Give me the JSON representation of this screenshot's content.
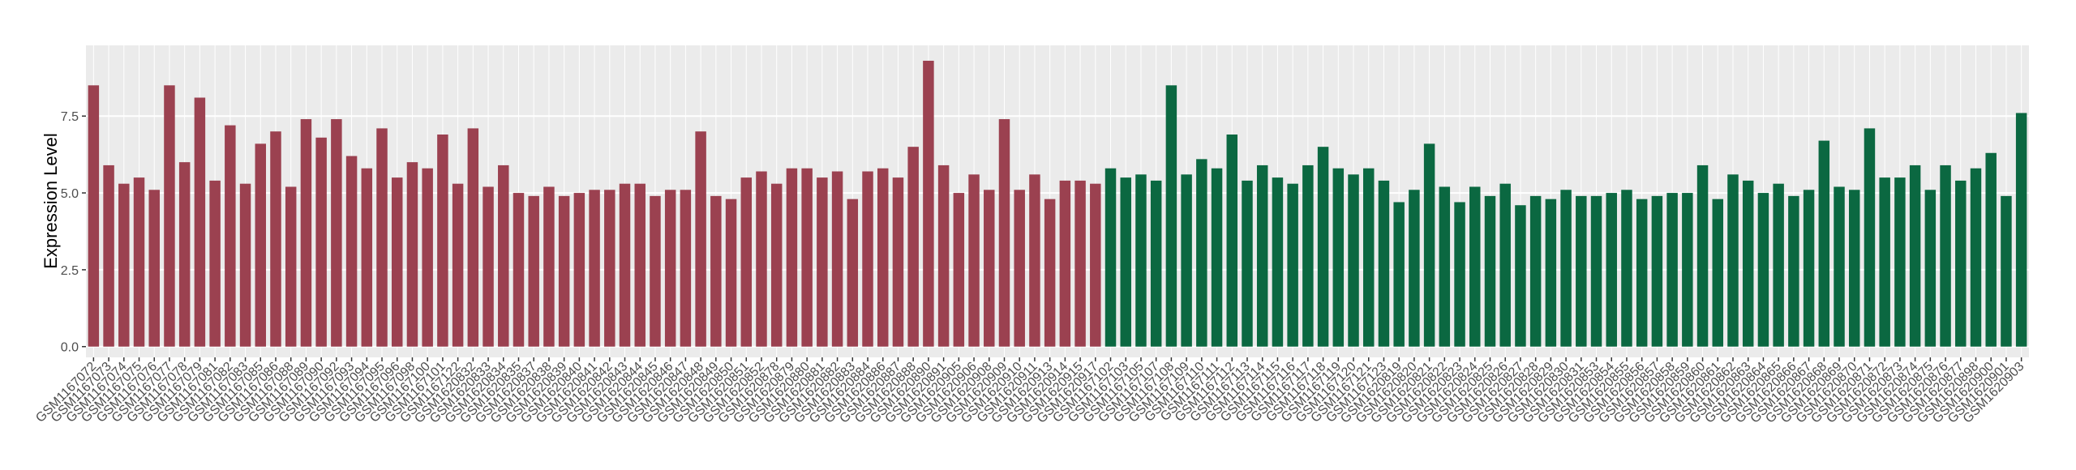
{
  "chart_data": {
    "type": "bar",
    "y_label": "Expression Level",
    "ylim": [
      -0.35,
      9.8
    ],
    "yticks": [
      {
        "value": 0,
        "label": "0.0"
      },
      {
        "value": 2.5,
        "label": "2.5"
      },
      {
        "value": 5,
        "label": "5.0"
      },
      {
        "value": 7.5,
        "label": "7.5"
      }
    ],
    "grid": true,
    "categories": [
      "GSM1167072",
      "GSM1167073",
      "GSM1167074",
      "GSM1167075",
      "GSM1167076",
      "GSM1167077",
      "GSM1167078",
      "GSM1167079",
      "GSM1167081",
      "GSM1167082",
      "GSM1167083",
      "GSM1167085",
      "GSM1167086",
      "GSM1167088",
      "GSM1167089",
      "GSM1167090",
      "GSM1167092",
      "GSM1167093",
      "GSM1167094",
      "GSM1167095",
      "GSM1167096",
      "GSM1167098",
      "GSM1167100",
      "GSM1167101",
      "GSM1167122",
      "GSM1620832",
      "GSM1620833",
      "GSM1620834",
      "GSM1620835",
      "GSM1620837",
      "GSM1620838",
      "GSM1620839",
      "GSM1620840",
      "GSM1620841",
      "GSM1620842",
      "GSM1620843",
      "GSM1620844",
      "GSM1620845",
      "GSM1620846",
      "GSM1620847",
      "GSM1620848",
      "GSM1620849",
      "GSM1620850",
      "GSM1620851",
      "GSM1620852",
      "GSM1620878",
      "GSM1620879",
      "GSM1620880",
      "GSM1620881",
      "GSM1620882",
      "GSM1620883",
      "GSM1620884",
      "GSM1620886",
      "GSM1620887",
      "GSM1620888",
      "GSM1620890",
      "GSM1620891",
      "GSM1620905",
      "GSM1620906",
      "GSM1620908",
      "GSM1620909",
      "GSM1620910",
      "GSM1620911",
      "GSM1620913",
      "GSM1620914",
      "GSM1620915",
      "GSM1620917",
      "GSM1167102",
      "GSM1167103",
      "GSM1167105",
      "GSM1167107",
      "GSM1167108",
      "GSM1167109",
      "GSM1167110",
      "GSM1167111",
      "GSM1167112",
      "GSM1167113",
      "GSM1167114",
      "GSM1167115",
      "GSM1167116",
      "GSM1167117",
      "GSM1167118",
      "GSM1167119",
      "GSM1167120",
      "GSM1167121",
      "GSM1167123",
      "GSM1620819",
      "GSM1620820",
      "GSM1620821",
      "GSM1620822",
      "GSM1620823",
      "GSM1620824",
      "GSM1620825",
      "GSM1620826",
      "GSM1620827",
      "GSM1620828",
      "GSM1620829",
      "GSM1620830",
      "GSM1620831",
      "GSM1620853",
      "GSM1620854",
      "GSM1620855",
      "GSM1620856",
      "GSM1620857",
      "GSM1620858",
      "GSM1620859",
      "GSM1620860",
      "GSM1620861",
      "GSM1620862",
      "GSM1620863",
      "GSM1620864",
      "GSM1620865",
      "GSM1620866",
      "GSM1620867",
      "GSM1620868",
      "GSM1620869",
      "GSM1620870",
      "GSM1620871",
      "GSM1620872",
      "GSM1620873",
      "GSM1620874",
      "GSM1620875",
      "GSM1620876",
      "GSM1620877",
      "GSM1620898",
      "GSM1620900",
      "GSM1620901",
      "GSM1620903"
    ],
    "series": [
      {
        "color": "#9b4150",
        "values": [
          8.5,
          5.9,
          5.3,
          5.5,
          5.1,
          8.5,
          6.0,
          8.1,
          5.4,
          7.2,
          5.3,
          6.6,
          7.0,
          5.2,
          7.4,
          6.8,
          7.4,
          6.2,
          5.8,
          7.1,
          5.5,
          6.0,
          5.8,
          6.9,
          5.3,
          7.1,
          5.2,
          5.9,
          5.0,
          4.9,
          5.2,
          4.9,
          5.0,
          5.1,
          5.1,
          5.3,
          5.3,
          4.9,
          5.1,
          5.1,
          7.0,
          4.9,
          4.8,
          5.5,
          5.7,
          5.3,
          5.8,
          5.8,
          5.5,
          5.7,
          4.8,
          5.7,
          5.8,
          5.5,
          6.5,
          9.3,
          5.9,
          5.0,
          5.6,
          5.1,
          7.4,
          5.1,
          5.6,
          4.8,
          5.4,
          5.4,
          5.3,
          null,
          null,
          null,
          null,
          null,
          null,
          null,
          null,
          null,
          null,
          null,
          null,
          null,
          null,
          null,
          null,
          null,
          null,
          null,
          null,
          null,
          null,
          null,
          null,
          null,
          null,
          null,
          null,
          null,
          null,
          null,
          null,
          null,
          null,
          null,
          null,
          null,
          null,
          null,
          null,
          null,
          null,
          null,
          null,
          null,
          null,
          null,
          null,
          null,
          null,
          null,
          null,
          null,
          null,
          null,
          null,
          null,
          null,
          null,
          null,
          null
        ]
      },
      {
        "color": "#0b6841",
        "values": [
          null,
          null,
          null,
          null,
          null,
          null,
          null,
          null,
          null,
          null,
          null,
          null,
          null,
          null,
          null,
          null,
          null,
          null,
          null,
          null,
          null,
          null,
          null,
          null,
          null,
          null,
          null,
          null,
          null,
          null,
          null,
          null,
          null,
          null,
          null,
          null,
          null,
          null,
          null,
          null,
          null,
          null,
          null,
          null,
          null,
          null,
          null,
          null,
          null,
          null,
          null,
          null,
          null,
          null,
          null,
          null,
          null,
          null,
          null,
          null,
          null,
          null,
          null,
          null,
          null,
          null,
          null,
          5.8,
          5.5,
          5.6,
          5.4,
          8.5,
          5.6,
          6.1,
          5.8,
          6.9,
          5.4,
          5.9,
          5.5,
          5.3,
          5.9,
          6.5,
          5.8,
          5.6,
          5.8,
          5.4,
          4.7,
          5.1,
          6.6,
          5.2,
          4.7,
          5.2,
          4.9,
          5.3,
          4.6,
          4.9,
          4.8,
          5.1,
          4.9,
          4.9,
          5.0,
          5.1,
          4.8,
          4.9,
          5.0,
          5.0,
          5.9,
          4.8,
          5.6,
          5.4,
          5.0,
          5.3,
          4.9,
          5.1,
          6.7,
          5.2,
          5.1,
          7.1,
          5.5,
          5.5,
          5.9,
          5.1,
          5.9,
          5.4,
          5.8,
          6.3,
          4.9,
          7.6
        ]
      }
    ]
  }
}
